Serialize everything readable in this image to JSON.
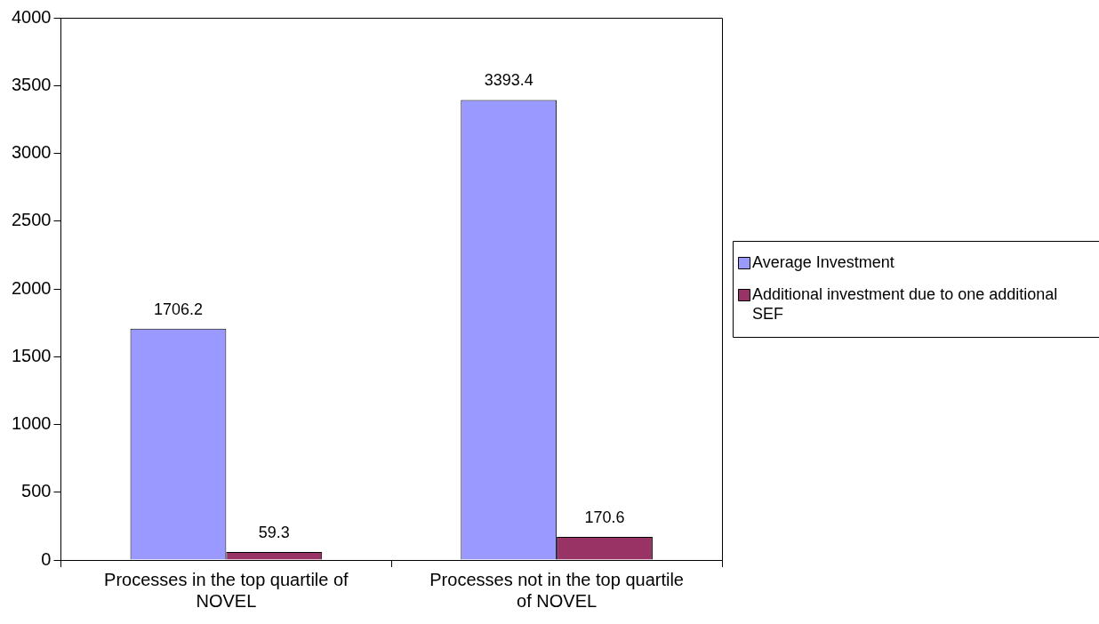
{
  "chart_data": {
    "type": "bar",
    "categories": [
      "Processes in the top quartile of NOVEL",
      "Processes not in the top quartile of NOVEL"
    ],
    "series": [
      {
        "name": "Average Investment",
        "color": "#9999ff",
        "values": [
          1706.2,
          3393.4
        ]
      },
      {
        "name": "Additional investment due to one additional SEF",
        "color": "#993366",
        "values": [
          59.3,
          170.6
        ]
      }
    ],
    "ylim": [
      0,
      4000
    ],
    "yticks": [
      0,
      500,
      1000,
      1500,
      2000,
      2500,
      3000,
      3500,
      4000
    ],
    "grid": false,
    "legend": "right",
    "data_labels": true
  }
}
